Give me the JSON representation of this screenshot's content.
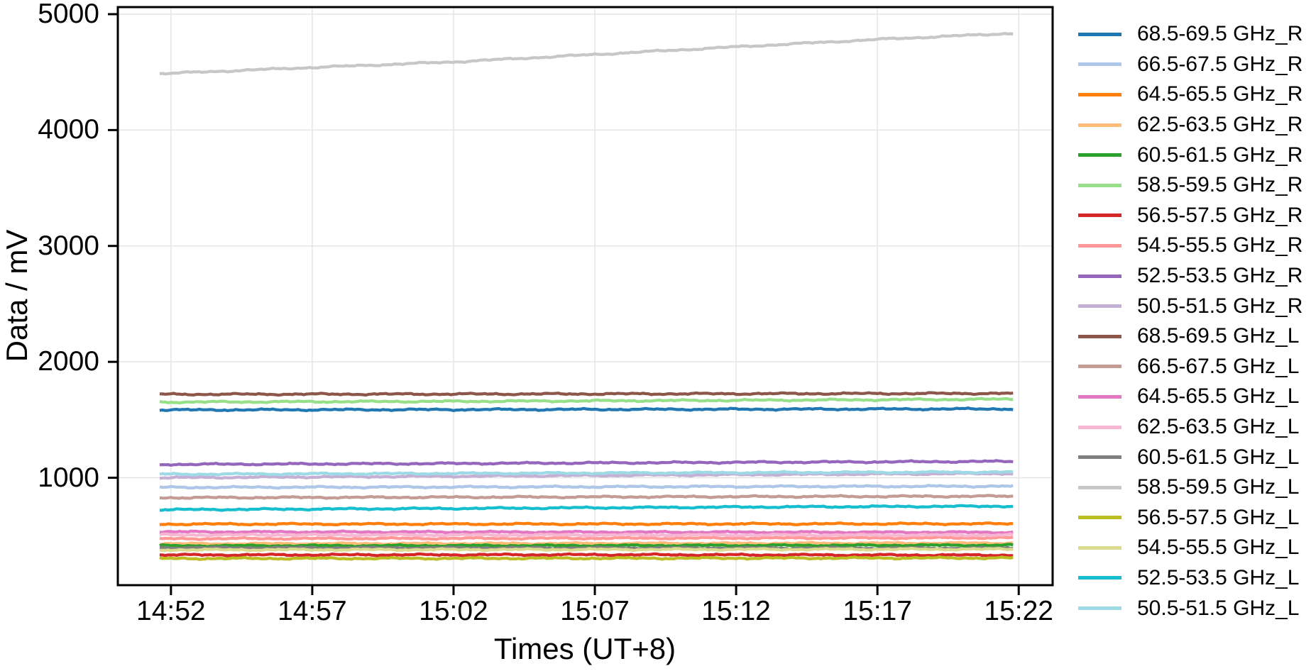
{
  "figure": {
    "background": "#ffffff",
    "plot_border_color": "#000000",
    "grid_color": "#e5e5e5"
  },
  "chart_data": {
    "type": "line",
    "title": "",
    "xlabel": "Times (UT+8)",
    "ylabel": "Data / mV",
    "grid": true,
    "legend_position": "right",
    "x_axis": {
      "unit": "minutes since 14:52",
      "tick_labels": [
        "14:52",
        "14:57",
        "15:02",
        "15:07",
        "15:12",
        "15:17",
        "15:22"
      ],
      "tick_minutes": [
        0,
        5,
        10,
        15,
        20,
        25,
        30
      ],
      "xlim_minutes": [
        -1.88,
        31.2
      ]
    },
    "y_axis": {
      "tick_labels": [
        "1000",
        "2000",
        "3000",
        "4000",
        "5000"
      ],
      "ticks": [
        1000,
        2000,
        3000,
        4000,
        5000
      ],
      "ylim": [
        73,
        5061
      ]
    },
    "noise_amplitude_mv": 7,
    "series": [
      {
        "name": "68.5-69.5 GHz_R",
        "color": "#1f77b4",
        "points_t_mv": [
          [
            -0.4,
            1585
          ],
          [
            10,
            1588
          ],
          [
            20,
            1591
          ],
          [
            29.8,
            1594
          ]
        ]
      },
      {
        "name": "66.5-67.5 GHz_R",
        "color": "#aec7e8",
        "points_t_mv": [
          [
            -0.4,
            917
          ],
          [
            10,
            920
          ],
          [
            20,
            924
          ],
          [
            29.8,
            927
          ]
        ]
      },
      {
        "name": "64.5-65.5 GHz_R",
        "color": "#ff7f0e",
        "points_t_mv": [
          [
            -0.4,
            600
          ],
          [
            15,
            601
          ],
          [
            29.8,
            603
          ]
        ]
      },
      {
        "name": "62.5-63.5 GHz_R",
        "color": "#ffbb78",
        "points_t_mv": [
          [
            -0.4,
            430
          ],
          [
            15,
            433
          ],
          [
            29.8,
            436
          ]
        ]
      },
      {
        "name": "60.5-61.5 GHz_R",
        "color": "#2ca02c",
        "points_t_mv": [
          [
            -0.4,
            413
          ],
          [
            15,
            415
          ],
          [
            29.8,
            418
          ]
        ]
      },
      {
        "name": "58.5-59.5 GHz_R",
        "color": "#98df8a",
        "points_t_mv": [
          [
            -0.4,
            1653
          ],
          [
            10,
            1659
          ],
          [
            20,
            1668
          ],
          [
            29.8,
            1678
          ]
        ]
      },
      {
        "name": "56.5-57.5 GHz_R",
        "color": "#d62728",
        "points_t_mv": [
          [
            -0.4,
            334
          ],
          [
            15,
            336
          ],
          [
            29.8,
            332
          ]
        ]
      },
      {
        "name": "54.5-55.5 GHz_R",
        "color": "#ff9896",
        "points_t_mv": [
          [
            -0.4,
            474
          ],
          [
            15,
            478
          ],
          [
            29.8,
            482
          ]
        ]
      },
      {
        "name": "52.5-53.5 GHz_R",
        "color": "#9467bd",
        "points_t_mv": [
          [
            -0.4,
            1115
          ],
          [
            10,
            1123
          ],
          [
            20,
            1133
          ],
          [
            29.8,
            1141
          ]
        ]
      },
      {
        "name": "50.5-51.5 GHz_R",
        "color": "#c5b0d5",
        "points_t_mv": [
          [
            -0.4,
            1000
          ],
          [
            10,
            1013
          ],
          [
            20,
            1026
          ],
          [
            29.8,
            1037
          ]
        ]
      },
      {
        "name": "68.5-69.5 GHz_L",
        "color": "#8c564b",
        "points_t_mv": [
          [
            -0.4,
            1720
          ],
          [
            10,
            1722
          ],
          [
            20,
            1725
          ],
          [
            29.8,
            1728
          ]
        ]
      },
      {
        "name": "66.5-67.5 GHz_L",
        "color": "#c49c94",
        "points_t_mv": [
          [
            -0.4,
            828
          ],
          [
            10,
            832
          ],
          [
            20,
            837
          ],
          [
            29.8,
            841
          ]
        ]
      },
      {
        "name": "64.5-65.5 GHz_L",
        "color": "#e377c2",
        "points_t_mv": [
          [
            -0.4,
            533
          ],
          [
            15,
            531
          ],
          [
            29.8,
            529
          ]
        ]
      },
      {
        "name": "62.5-63.5 GHz_L",
        "color": "#f7b6d2",
        "points_t_mv": [
          [
            -0.4,
            507
          ],
          [
            15,
            506
          ],
          [
            29.8,
            505
          ]
        ]
      },
      {
        "name": "60.5-61.5 GHz_L",
        "color": "#7f7f7f",
        "points_t_mv": [
          [
            -0.4,
            396
          ],
          [
            15,
            394
          ],
          [
            29.8,
            392
          ]
        ]
      },
      {
        "name": "58.5-59.5 GHz_L",
        "color": "#c7c7c7",
        "points_t_mv": [
          [
            -0.4,
            4486
          ],
          [
            5,
            4540
          ],
          [
            10,
            4588
          ],
          [
            15,
            4652
          ],
          [
            20,
            4718
          ],
          [
            25,
            4782
          ],
          [
            29.8,
            4835
          ]
        ]
      },
      {
        "name": "56.5-57.5 GHz_L",
        "color": "#bcbd22",
        "points_t_mv": [
          [
            -0.4,
            303
          ],
          [
            15,
            305
          ],
          [
            29.8,
            308
          ]
        ]
      },
      {
        "name": "54.5-55.5 GHz_L",
        "color": "#dbdb8d",
        "points_t_mv": [
          [
            -0.4,
            378
          ],
          [
            15,
            381
          ],
          [
            29.8,
            384
          ]
        ]
      },
      {
        "name": "52.5-53.5 GHz_L",
        "color": "#17becf",
        "points_t_mv": [
          [
            -0.4,
            724
          ],
          [
            10,
            735
          ],
          [
            20,
            747
          ],
          [
            29.8,
            755
          ]
        ]
      },
      {
        "name": "50.5-51.5 GHz_L",
        "color": "#9edae5",
        "points_t_mv": [
          [
            -0.4,
            1030
          ],
          [
            10,
            1037
          ],
          [
            20,
            1044
          ],
          [
            29.8,
            1049
          ]
        ]
      }
    ]
  }
}
